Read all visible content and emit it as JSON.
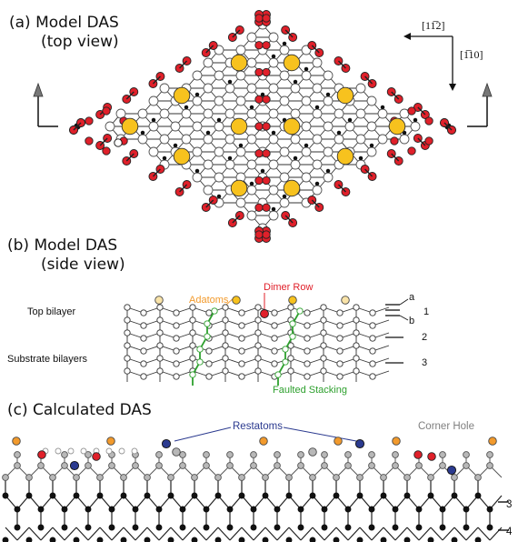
{
  "panels": {
    "a": {
      "title_line1": "(a) Model DAS",
      "title_line2": "(top view)",
      "direction_horizontal": "[11̅2]",
      "direction_vertical": "[1̅10]"
    },
    "b": {
      "title_line1": "(b) Model DAS",
      "title_line2": "(side view)",
      "adatoms": "Adatoms",
      "dimer_row": "Dimer Row",
      "top_bilayer": "Top bilayer",
      "substrate_bilayers": "Substrate bilayers",
      "faulted_stacking": "Faulted Stacking",
      "layer_a": "a",
      "layer_b": "b",
      "layer_1": "1",
      "layer_2": "2",
      "layer_3": "3"
    },
    "c": {
      "title": "(c) Calculated DAS",
      "restatoms": "Restatoms",
      "corner_hole": "Corner Hole",
      "layer_3": "3",
      "layer_4": "4"
    }
  },
  "colors": {
    "adatom_top": "#f7c21e",
    "red_atom": "#e0202a",
    "orange_atom": "#f29a2c",
    "blue_atom": "#2b3a8f",
    "green": "#2ea02e",
    "gray_atom": "#b8b8b8",
    "dimer_label": "#e0202a",
    "adatom_label": "#f29a2c",
    "restatom_label": "#2b3a8f",
    "corner_label": "#808080"
  }
}
